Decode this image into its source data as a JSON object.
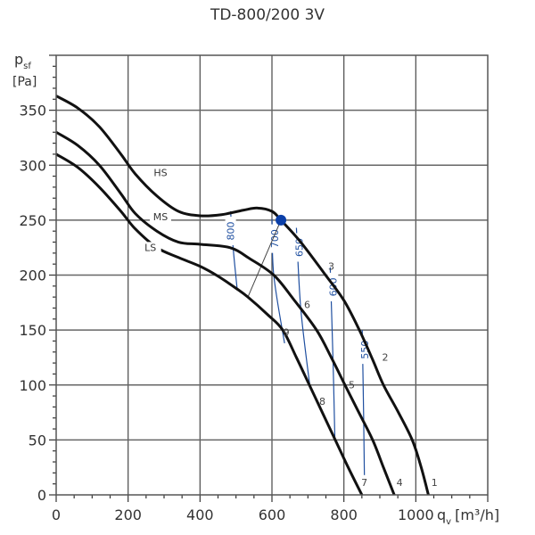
{
  "chart_data": {
    "type": "line",
    "title": "TD-800/200 3V",
    "xlabel": "q",
    "xlabel_sub": "v",
    "xlabel_unit": "[m³/h]",
    "ylabel": "p",
    "ylabel_sub": "sf",
    "ylabel_unit": "[Pa]",
    "xlim": [
      0,
      1200
    ],
    "ylim": [
      0,
      400
    ],
    "xticks": [
      0,
      200,
      400,
      600,
      800,
      1000
    ],
    "xtick_labels": [
      "0",
      "200",
      "400",
      "600",
      "800",
      "1000"
    ],
    "yticks": [
      0,
      50,
      100,
      150,
      200,
      250,
      300,
      350
    ],
    "ytick_labels": [
      "0",
      "50",
      "100",
      "150",
      "200",
      "250",
      "300",
      "350"
    ],
    "grid": true,
    "series": [
      {
        "name": "HS",
        "color": "#111111",
        "points": [
          [
            0,
            363
          ],
          [
            60,
            352
          ],
          [
            120,
            335
          ],
          [
            180,
            310
          ],
          [
            220,
            292
          ],
          [
            280,
            272
          ],
          [
            340,
            258
          ],
          [
            400,
            254
          ],
          [
            460,
            255
          ],
          [
            520,
            259
          ],
          [
            560,
            261
          ],
          [
            600,
            258
          ],
          [
            625,
            250
          ],
          [
            680,
            230
          ],
          [
            749,
            200
          ],
          [
            800,
            177
          ],
          [
            843,
            150
          ],
          [
            880,
            123
          ],
          [
            910,
            100
          ],
          [
            950,
            76
          ],
          [
            990,
            50
          ],
          [
            1015,
            25
          ],
          [
            1035,
            0
          ]
        ]
      },
      {
        "name": "MS",
        "color": "#111111",
        "points": [
          [
            0,
            330
          ],
          [
            60,
            318
          ],
          [
            120,
            300
          ],
          [
            180,
            274
          ],
          [
            220,
            256
          ],
          [
            280,
            240
          ],
          [
            340,
            230
          ],
          [
            400,
            228
          ],
          [
            483,
            225
          ],
          [
            538,
            215
          ],
          [
            605,
            200
          ],
          [
            660,
            178
          ],
          [
            724,
            150
          ],
          [
            765,
            125
          ],
          [
            803,
            100
          ],
          [
            840,
            76
          ],
          [
            880,
            50
          ],
          [
            910,
            25
          ],
          [
            940,
            0
          ]
        ]
      },
      {
        "name": "LS",
        "color": "#111111",
        "points": [
          [
            0,
            310
          ],
          [
            60,
            298
          ],
          [
            120,
            280
          ],
          [
            180,
            258
          ],
          [
            220,
            242
          ],
          [
            280,
            225
          ],
          [
            340,
            216
          ],
          [
            400,
            208
          ],
          [
            450,
            199
          ],
          [
            500,
            188
          ],
          [
            533,
            180
          ],
          [
            588,
            164
          ],
          [
            630,
            150
          ],
          [
            668,
            125
          ],
          [
            704,
            100
          ],
          [
            740,
            75
          ],
          [
            776,
            50
          ],
          [
            812,
            25
          ],
          [
            850,
            0
          ]
        ]
      }
    ],
    "rpm_lines": [
      {
        "label": "800",
        "color": "#1f4fa0",
        "points": [
          [
            485,
            258
          ],
          [
            492,
            225
          ],
          [
            503,
            188
          ]
        ]
      },
      {
        "label": "700",
        "color": "#1f4fa0",
        "points": [
          [
            600,
            251
          ],
          [
            605,
            200
          ],
          [
            635,
            138
          ]
        ]
      },
      {
        "label": "650",
        "color": "#1f4fa0",
        "points": [
          [
            668,
            243
          ],
          [
            680,
            170
          ],
          [
            705,
            100
          ]
        ]
      },
      {
        "label": "600",
        "color": "#1f4fa0",
        "points": [
          [
            762,
            207
          ],
          [
            770,
            120
          ],
          [
            775,
            50
          ]
        ]
      },
      {
        "label": "550",
        "color": "#1f4fa0",
        "points": [
          [
            851,
            150
          ],
          [
            855,
            70
          ],
          [
            857,
            18
          ]
        ]
      }
    ],
    "system_line": {
      "color": "#444444",
      "points": [
        [
          533,
          180
        ],
        [
          625,
          250
        ]
      ]
    },
    "operating_point": {
      "x": 625,
      "y": 250,
      "color": "#0b3fa8"
    },
    "curve_labels": [
      {
        "text": "HS",
        "x": 290,
        "y": 290
      },
      {
        "text": "MS",
        "x": 290,
        "y": 250
      },
      {
        "text": "LS",
        "x": 262,
        "y": 222
      }
    ],
    "point_labels": [
      {
        "text": "1",
        "x": 1052,
        "y": 8
      },
      {
        "text": "2",
        "x": 915,
        "y": 122
      },
      {
        "text": "3",
        "x": 765,
        "y": 205
      },
      {
        "text": "4",
        "x": 955,
        "y": 8
      },
      {
        "text": "5",
        "x": 822,
        "y": 97
      },
      {
        "text": "6",
        "x": 698,
        "y": 170
      },
      {
        "text": "7",
        "x": 857,
        "y": 8
      },
      {
        "text": "8",
        "x": 740,
        "y": 82
      },
      {
        "text": "9",
        "x": 640,
        "y": 145
      }
    ]
  }
}
